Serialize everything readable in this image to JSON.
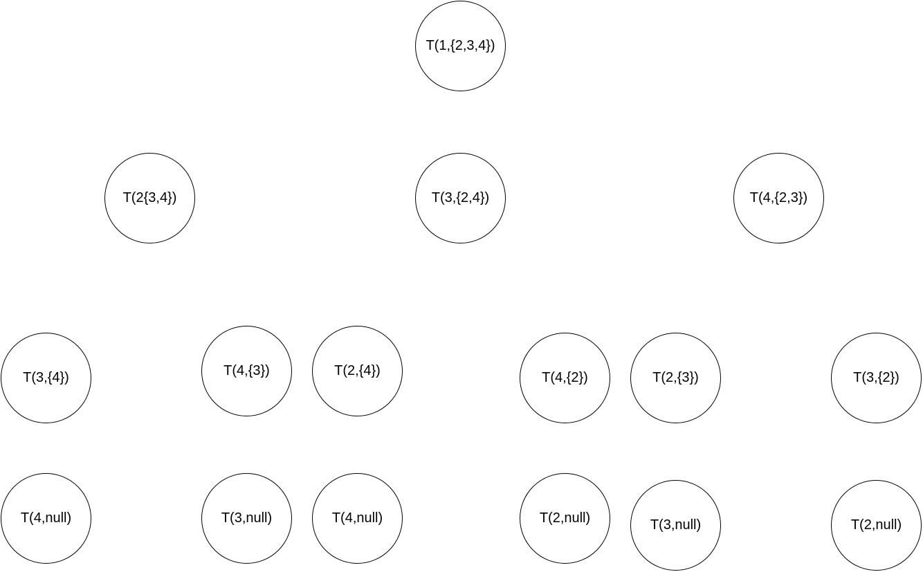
{
  "diagram": {
    "root": {
      "label": "T(1,{2,3,4})"
    },
    "level1": [
      {
        "label": "T(2{3,4})"
      },
      {
        "label": "T(3,{2,4})"
      },
      {
        "label": "T(4,{2,3})"
      }
    ],
    "level2": [
      {
        "label": "T(3,{4})"
      },
      {
        "label": "T(4,{3})"
      },
      {
        "label": "T(2,{4})"
      },
      {
        "label": "T(4,{2})"
      },
      {
        "label": "T(2,{3})"
      },
      {
        "label": "T(3,{2})"
      }
    ],
    "level3": [
      {
        "label": "T(4,null)"
      },
      {
        "label": "T(3,null)"
      },
      {
        "label": "T(4,null)"
      },
      {
        "label": "T(2,null)"
      },
      {
        "label": "T(3,null)"
      },
      {
        "label": "T(2,null)"
      }
    ],
    "colors": {
      "stroke": "#000000",
      "fill": "#ffffff",
      "text": "#000000"
    }
  }
}
